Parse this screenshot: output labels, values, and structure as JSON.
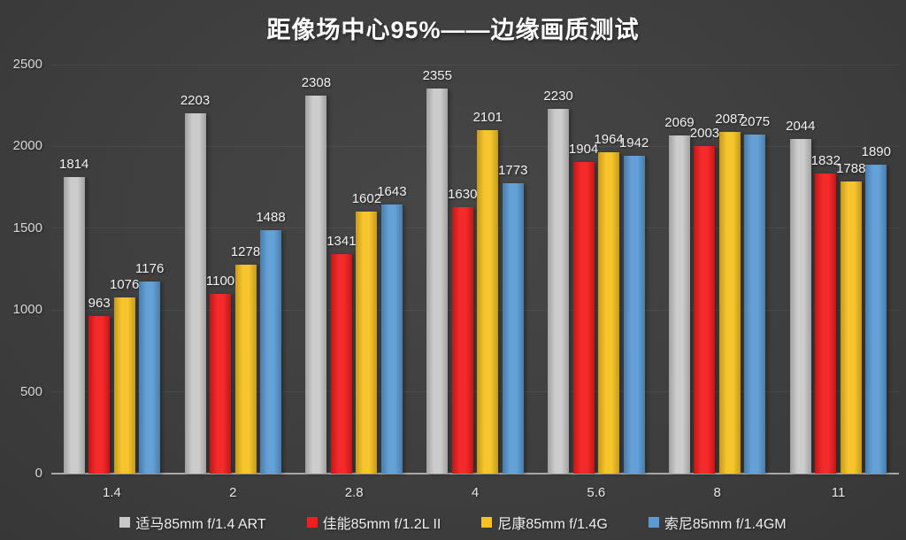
{
  "chart_data": {
    "type": "bar",
    "title": "距像场中心95%——边缘画质测试",
    "categories": [
      "1.4",
      "2",
      "2.8",
      "4",
      "5.6",
      "8",
      "11"
    ],
    "series": [
      {
        "name": "适马85mm f/1.4 ART",
        "color": "#c9c9c9",
        "values": [
          1814,
          2203,
          2308,
          2355,
          2230,
          2069,
          2044
        ]
      },
      {
        "name": "佳能85mm f/1.2L II",
        "color": "#f31d1e",
        "values": [
          963,
          1100,
          1341,
          1630,
          1904,
          2003,
          1832
        ]
      },
      {
        "name": "尼康85mm f/1.4G",
        "color": "#f6c121",
        "values": [
          1076,
          1278,
          1602,
          2101,
          1964,
          2087,
          1788
        ]
      },
      {
        "name": "索尼85mm f/1.4GM",
        "color": "#5b9bd5",
        "values": [
          1176,
          1488,
          1643,
          1773,
          1942,
          2075,
          1890
        ]
      }
    ],
    "yticks": [
      0,
      500,
      1000,
      1500,
      2000,
      2500
    ],
    "ylim": [
      0,
      2500
    ],
    "xlabel": "",
    "ylabel": "",
    "grid": true,
    "legend_position": "bottom",
    "background_color": "#3f3f3f",
    "axis_line_color": "#a8a8a8"
  }
}
